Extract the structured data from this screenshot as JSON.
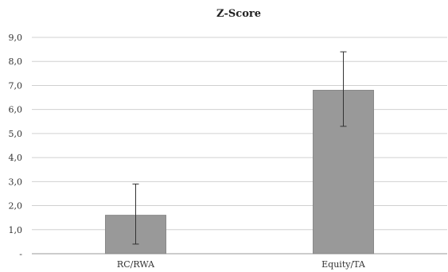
{
  "chart_data": {
    "type": "bar",
    "title": "Z-Score",
    "xlabel": "",
    "ylabel": "",
    "categories": [
      "RC/RWA",
      "Equity/TA"
    ],
    "values": [
      1.6,
      6.8
    ],
    "error_low": [
      0.4,
      5.3
    ],
    "error_high": [
      2.9,
      8.4
    ],
    "ylim": [
      0,
      9
    ],
    "ytick_values": [
      0,
      1,
      2,
      3,
      4,
      5,
      6,
      7,
      8,
      9
    ],
    "ytick_labels": [
      "-",
      "1,0",
      "2,0",
      "3,0",
      "4,0",
      "5,0",
      "6,0",
      "7,0",
      "8,0",
      "9,0"
    ],
    "grid": true,
    "legend": "none",
    "colors": {
      "bar": "#999999",
      "bar_edge": "#888888",
      "grid": "#d0d0d0",
      "axis": "#999999",
      "error_bar": "#333333"
    }
  }
}
